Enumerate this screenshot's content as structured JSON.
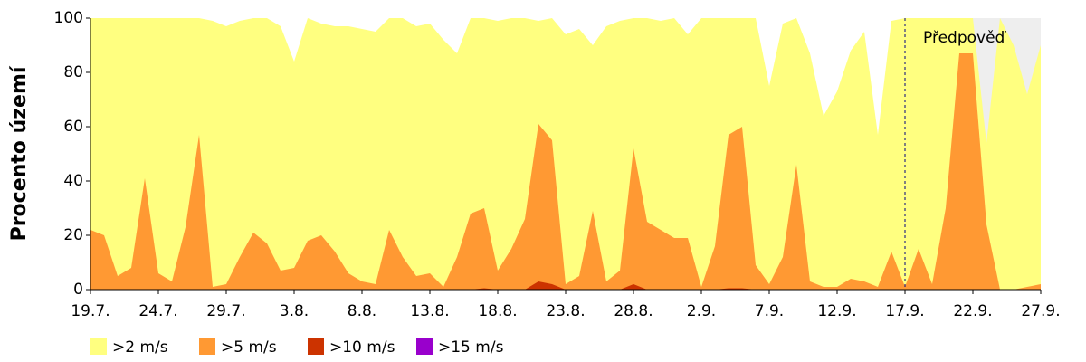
{
  "chart_data": {
    "type": "area",
    "y_label": "Procento území",
    "annotation": "Předpověď",
    "forecast_start": "17.9.",
    "forecast_background": "#eeeeee",
    "categories": [
      "19.7.",
      null,
      null,
      null,
      null,
      "24.7.",
      null,
      null,
      null,
      null,
      "29.7.",
      null,
      null,
      null,
      null,
      "3.8.",
      null,
      null,
      null,
      null,
      "8.8.",
      null,
      null,
      null,
      null,
      "13.8.",
      null,
      null,
      null,
      null,
      "18.8.",
      null,
      null,
      null,
      null,
      "23.8.",
      null,
      null,
      null,
      null,
      "28.8.",
      null,
      null,
      null,
      null,
      "2.9.",
      null,
      null,
      null,
      null,
      "7.9.",
      null,
      null,
      null,
      null,
      "12.9.",
      null,
      null,
      null,
      null,
      "17.9.",
      null,
      null,
      null,
      null,
      "22.9.",
      null,
      null,
      null,
      null,
      "27.9."
    ],
    "series": [
      {
        "name": ">2 m/s",
        "color": "#ffff80",
        "values": [
          100,
          100,
          100,
          100,
          100,
          100,
          100,
          100,
          100,
          99,
          97,
          99,
          100,
          100,
          97,
          84,
          100,
          98,
          97,
          97,
          96,
          95,
          100,
          100,
          97,
          98,
          92,
          87,
          100,
          100,
          99,
          100,
          100,
          99,
          100,
          94,
          96,
          90,
          97,
          99,
          100,
          100,
          99,
          100,
          94,
          100,
          100,
          100,
          100,
          100,
          75,
          98,
          100,
          87,
          64,
          73,
          88,
          95,
          57,
          99,
          100,
          100,
          100,
          100,
          100,
          100,
          54,
          100,
          90,
          72,
          90
        ]
      },
      {
        "name": ">5 m/s",
        "color": "#ff9933",
        "values": [
          22,
          20,
          5,
          8,
          41,
          6,
          3,
          23,
          57,
          1,
          2,
          12,
          21,
          17,
          7,
          8,
          18,
          20,
          14,
          6,
          3,
          2,
          22,
          12,
          5,
          6,
          1,
          12,
          28,
          30,
          7,
          15,
          26,
          61,
          55,
          2,
          5,
          29,
          3,
          7,
          52,
          25,
          22,
          19,
          19,
          1,
          16,
          57,
          60,
          9,
          2,
          12,
          46,
          3,
          1,
          1,
          4,
          3,
          1,
          14,
          1,
          15,
          2,
          30,
          87,
          87,
          24,
          0,
          0,
          1,
          2
        ]
      },
      {
        "name": ">10 m/s",
        "color": "#cc3300",
        "values": [
          0,
          0,
          0,
          0,
          0,
          0,
          0,
          0,
          0,
          0,
          0,
          0,
          0,
          0,
          0,
          0,
          0,
          0,
          0,
          0,
          0,
          0,
          0,
          0,
          0,
          0,
          0,
          0,
          0,
          0.5,
          0,
          0,
          0,
          3,
          2,
          0,
          0,
          0,
          0,
          0,
          2,
          0,
          0,
          0,
          0,
          0,
          0,
          0.5,
          0.5,
          0,
          0,
          0,
          0,
          0,
          0,
          0,
          0,
          0,
          0,
          0,
          0,
          0,
          0,
          0,
          0,
          0,
          0,
          0,
          0,
          0,
          0
        ]
      },
      {
        "name": ">15 m/s",
        "color": "#9900cc",
        "values": [
          0,
          0,
          0,
          0,
          0,
          0,
          0,
          0,
          0,
          0,
          0,
          0,
          0,
          0,
          0,
          0,
          0,
          0,
          0,
          0,
          0,
          0,
          0,
          0,
          0,
          0,
          0,
          0,
          0,
          0,
          0,
          0,
          0,
          0,
          0,
          0,
          0,
          0,
          0,
          0,
          0,
          0,
          0,
          0,
          0,
          0,
          0,
          0,
          0,
          0,
          0,
          0,
          0,
          0,
          0,
          0,
          0,
          0,
          0,
          0,
          0,
          0,
          0,
          0,
          0,
          0,
          0,
          0,
          0,
          0,
          0
        ]
      }
    ],
    "ylim": [
      0,
      100
    ],
    "yticks": [
      0,
      20,
      40,
      60,
      80,
      100
    ]
  }
}
